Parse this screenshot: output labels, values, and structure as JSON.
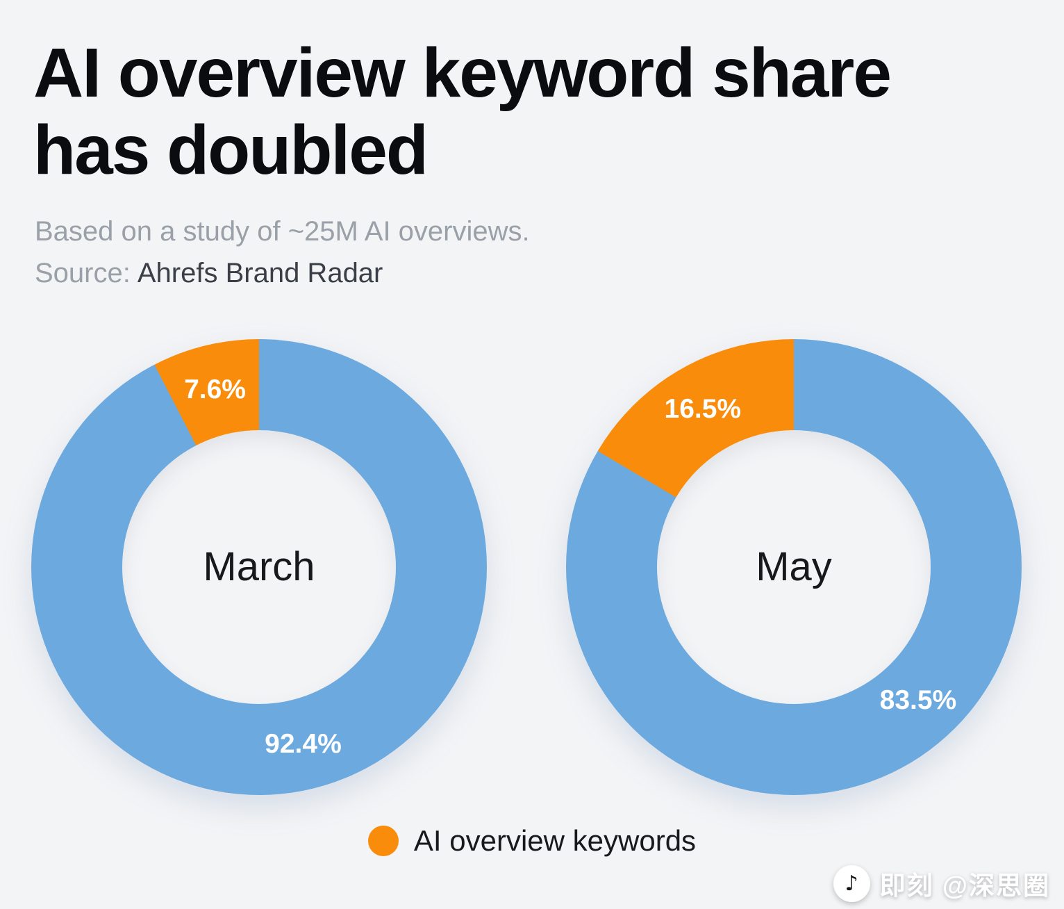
{
  "page": {
    "background": "#f3f4f6"
  },
  "header": {
    "title_line1": "AI overview keyword share",
    "title_line2": "has doubled",
    "subtitle": "Based on a study of ~25M AI overviews.",
    "source_label": "Source:",
    "source_value": "Ahrefs Brand Radar"
  },
  "chart_data": {
    "type": "pie",
    "variant": "donut",
    "unit": "%",
    "start_angle_deg": 0,
    "direction": "clockwise",
    "inner_radius_pct": 60,
    "label_radius_pct": 40,
    "colors": {
      "other_keywords": "#6BA9DF",
      "ai_overview_keywords": "#F98D0B"
    },
    "legend": [
      {
        "key": "ai_overview_keywords",
        "label": "AI overview keywords",
        "color": "#F98D0B"
      }
    ],
    "legend_position": "bottom-center",
    "charts": [
      {
        "center_label": "March",
        "slices": [
          {
            "key": "other_keywords",
            "value": 92.4,
            "label": "92.4%",
            "label_angle_deg": 166
          },
          {
            "key": "ai_overview_keywords",
            "value": 7.6,
            "label": "7.6%",
            "label_angle_deg": 346
          }
        ]
      },
      {
        "center_label": "May",
        "slices": [
          {
            "key": "other_keywords",
            "value": 83.5,
            "label": "83.5%",
            "label_angle_deg": 137
          },
          {
            "key": "ai_overview_keywords",
            "value": 16.5,
            "label": "16.5%",
            "label_angle_deg": 330
          }
        ]
      }
    ]
  },
  "watermark": {
    "icon": "music-note",
    "icon_glyph": "♪",
    "text": "即刻 @深思圈"
  }
}
